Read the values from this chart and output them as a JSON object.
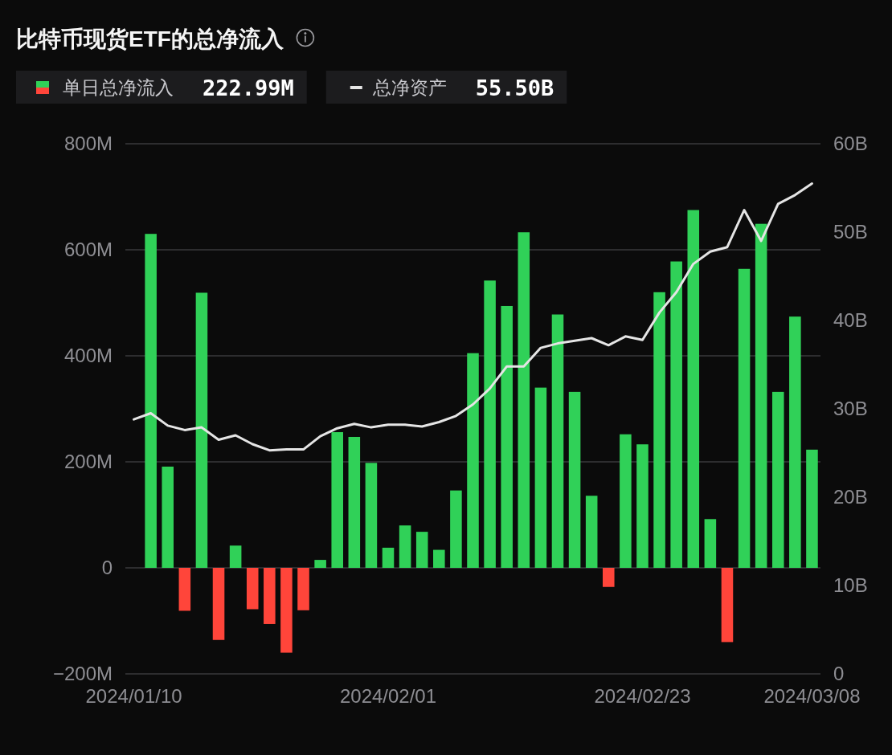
{
  "chart_data": {
    "type": "bar",
    "title": "比特币现货ETF的总净流入",
    "categories": [
      "2024/01/10",
      null,
      null,
      null,
      null,
      null,
      null,
      null,
      null,
      null,
      null,
      null,
      null,
      null,
      null,
      "2024/02/01",
      null,
      null,
      null,
      null,
      null,
      null,
      null,
      null,
      null,
      null,
      null,
      null,
      null,
      null,
      "2024/02/23",
      null,
      null,
      null,
      null,
      null,
      null,
      null,
      null,
      null,
      "2024/03/08"
    ],
    "series": [
      {
        "name": "单日总净流入",
        "colors": [
          null,
          "#30d158",
          "#30d158",
          "#ff453a",
          "#30d158",
          "#ff453a",
          "#30d158",
          "#ff453a",
          "#ff453a",
          "#ff453a",
          "#ff453a",
          "#30d158",
          "#30d158",
          "#30d158",
          "#30d158",
          "#30d158",
          "#30d158",
          "#30d158",
          "#30d158",
          "#30d158",
          "#30d158",
          "#30d158",
          "#30d158",
          "#30d158",
          "#30d158",
          "#30d158",
          "#30d158",
          "#30d158",
          "#ff453a",
          "#30d158",
          "#30d158",
          "#30d158",
          "#30d158",
          "#30d158",
          "#30d158",
          "#ff453a",
          "#30d158",
          "#30d158",
          "#30d158",
          "#30d158",
          "#30d158"
        ],
        "values": [
          null,
          630,
          191,
          -81,
          519,
          -136,
          42,
          -78,
          -106,
          -160,
          -80,
          15,
          256,
          247,
          198,
          38,
          80,
          68,
          34,
          146,
          405,
          542,
          494,
          633,
          340,
          478,
          332,
          136,
          -36,
          252,
          233,
          520,
          578,
          675,
          92,
          -140,
          564,
          649,
          332,
          474,
          222.99
        ]
      },
      {
        "name": "总净资产",
        "type": "line",
        "axis": "y2",
        "color": "#e5e5e5",
        "values": [
          28.8,
          29.5,
          28.1,
          27.6,
          27.9,
          26.5,
          27.0,
          26.0,
          25.3,
          25.4,
          25.4,
          26.9,
          27.8,
          28.3,
          27.9,
          28.2,
          28.2,
          28.0,
          28.5,
          29.2,
          30.5,
          32.3,
          34.8,
          34.8,
          36.9,
          37.4,
          37.7,
          38.0,
          37.2,
          38.2,
          37.8,
          40.9,
          43.2,
          46.4,
          47.8,
          48.3,
          52.5,
          49.0,
          53.2,
          54.2,
          55.5
        ]
      }
    ],
    "ylim": [
      -200,
      800
    ],
    "yticks": [
      {
        "value": -200,
        "label": "−200M"
      },
      0,
      {
        "value": 200,
        "label": "200M"
      },
      {
        "value": 400,
        "label": "400M"
      },
      {
        "value": 600,
        "label": "600M"
      },
      {
        "value": 800,
        "label": "800M"
      }
    ],
    "y2lim": [
      0,
      60
    ],
    "y2ticks": [
      0,
      {
        "value": 10,
        "label": "10B"
      },
      {
        "value": 20,
        "label": "20B"
      },
      {
        "value": 30,
        "label": "30B"
      },
      {
        "value": 40,
        "label": "40B"
      },
      {
        "value": 50,
        "label": "50B"
      },
      {
        "value": 60,
        "label": "60B"
      }
    ],
    "grid": "y",
    "legend": "top left",
    "annotations": [
      "222.99M",
      "55.50B"
    ]
  }
}
